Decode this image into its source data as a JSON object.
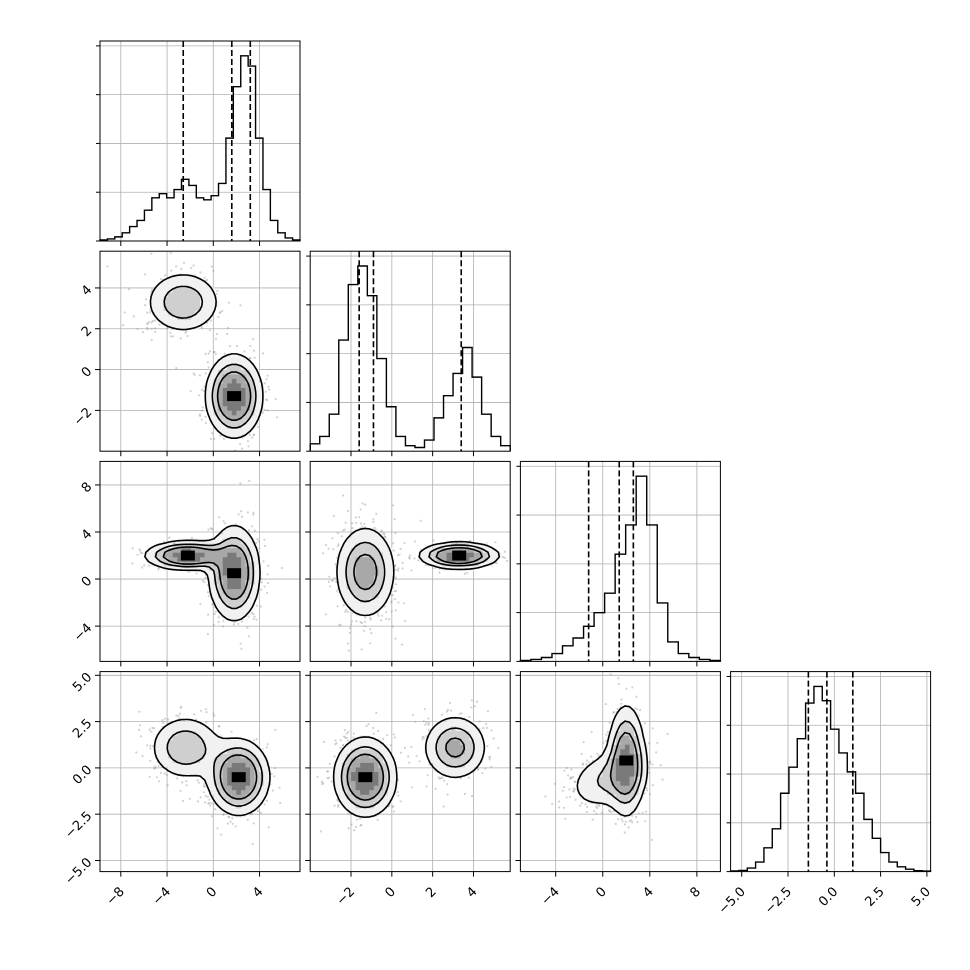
{
  "chart_data": {
    "type": "corner",
    "parameters": 4,
    "colors": {
      "line": "#000000",
      "grid": "#b0b0b0",
      "scatter": "#9a9a9a",
      "fill": "#bdbdbd",
      "core": "#000000"
    },
    "axes": [
      {
        "lim": [
          -9.8,
          7.5
        ],
        "ticks": [
          -8,
          -4,
          0,
          4
        ],
        "tick_labels": [
          "−8",
          "−4",
          "0",
          "4"
        ]
      },
      {
        "lim": [
          -4.0,
          5.8
        ],
        "ticks": [
          -2,
          0,
          2,
          4
        ],
        "tick_labels": [
          "−2",
          "0",
          "2",
          "4"
        ]
      },
      {
        "lim": [
          -7.0,
          10.0
        ],
        "ticks": [
          -4,
          0,
          4,
          8
        ],
        "tick_labels": [
          "−4",
          "0",
          "4",
          "8"
        ]
      },
      {
        "lim": [
          -5.6,
          5.2
        ],
        "ticks": [
          -5,
          -2.5,
          0,
          2.5,
          5
        ],
        "tick_labels": [
          "−5.0",
          "−2.5",
          "0.0",
          "2.5",
          "5.0"
        ]
      }
    ],
    "histograms": [
      {
        "quantiles": [
          -2.6,
          1.6,
          3.2
        ],
        "counts": [
          0.5,
          1,
          2,
          4,
          7,
          10,
          15,
          21,
          23,
          21,
          25,
          30,
          27,
          21,
          20,
          22,
          28,
          50,
          75,
          90,
          85,
          50,
          25,
          10,
          4,
          1.5,
          0.5
        ]
      },
      {
        "quantiles": [
          -1.6,
          -0.9,
          3.4
        ],
        "counts": [
          2,
          4,
          10,
          30,
          45,
          50,
          42,
          25,
          12,
          4,
          1.5,
          1,
          3,
          9,
          15,
          21,
          28,
          20,
          10,
          4,
          1.5
        ]
      },
      {
        "quantiles": [
          -1.2,
          1.4,
          2.6
        ],
        "counts": [
          0.5,
          1,
          2,
          4,
          8,
          12,
          18,
          25,
          35,
          55,
          70,
          95,
          70,
          30,
          10,
          4,
          2,
          1,
          0.5
        ]
      },
      {
        "quantiles": [
          -1.4,
          -0.4,
          1.0
        ],
        "counts": [
          0.3,
          0.5,
          1.5,
          4,
          10,
          18,
          33,
          44,
          56,
          71,
          78,
          72,
          60,
          50,
          42,
          33,
          22,
          14,
          8,
          4,
          2,
          1,
          0.4,
          0.2
        ]
      }
    ],
    "joint_panels": [
      {
        "row": 1,
        "col": 0,
        "modes": [
          {
            "cx": -2.6,
            "cy": 3.3,
            "sx": 1.7,
            "sy": 0.8,
            "rho": 0.0,
            "w": 0.35,
            "core": false
          },
          {
            "cx": 1.8,
            "cy": -1.3,
            "sx": 1.2,
            "sy": 1.0,
            "rho": 0.0,
            "w": 0.65,
            "core": true
          }
        ]
      },
      {
        "row": 2,
        "col": 0,
        "modes": [
          {
            "cx": -2.2,
            "cy": 2.0,
            "sx": 1.8,
            "sy": 0.6,
            "rho": 0.0,
            "w": 0.35,
            "core": true
          },
          {
            "cx": 1.8,
            "cy": 0.5,
            "sx": 1.1,
            "sy": 2.0,
            "rho": 0.0,
            "w": 0.65,
            "core": true
          }
        ]
      },
      {
        "row": 2,
        "col": 1,
        "modes": [
          {
            "cx": -1.3,
            "cy": 0.6,
            "sx": 0.75,
            "sy": 2.0,
            "rho": 0.0,
            "w": 0.65,
            "core": false
          },
          {
            "cx": 3.3,
            "cy": 2.0,
            "sx": 0.95,
            "sy": 0.55,
            "rho": 0.0,
            "w": 0.35,
            "core": true
          }
        ]
      },
      {
        "row": 3,
        "col": 0,
        "modes": [
          {
            "cx": -2.4,
            "cy": 1.1,
            "sx": 1.6,
            "sy": 0.9,
            "rho": 0.0,
            "w": 0.35,
            "core": false
          },
          {
            "cx": 2.2,
            "cy": -0.5,
            "sx": 1.3,
            "sy": 1.0,
            "rho": 0.0,
            "w": 0.65,
            "core": true
          }
        ]
      },
      {
        "row": 3,
        "col": 1,
        "modes": [
          {
            "cx": -1.3,
            "cy": -0.5,
            "sx": 0.75,
            "sy": 1.05,
            "rho": 0.0,
            "w": 0.65,
            "core": true
          },
          {
            "cx": 3.1,
            "cy": 1.1,
            "sx": 0.8,
            "sy": 0.9,
            "rho": 0.0,
            "w": 0.35,
            "core": false
          }
        ]
      },
      {
        "row": 3,
        "col": 2,
        "modes": [
          {
            "cx": 0.4,
            "cy": -0.6,
            "sx": 1.8,
            "sy": 0.9,
            "rho": 0.3,
            "w": 0.35,
            "core": false
          },
          {
            "cx": 2.0,
            "cy": 0.4,
            "sx": 0.8,
            "sy": 1.5,
            "rho": 0.0,
            "w": 0.65,
            "core": true
          }
        ]
      }
    ]
  }
}
